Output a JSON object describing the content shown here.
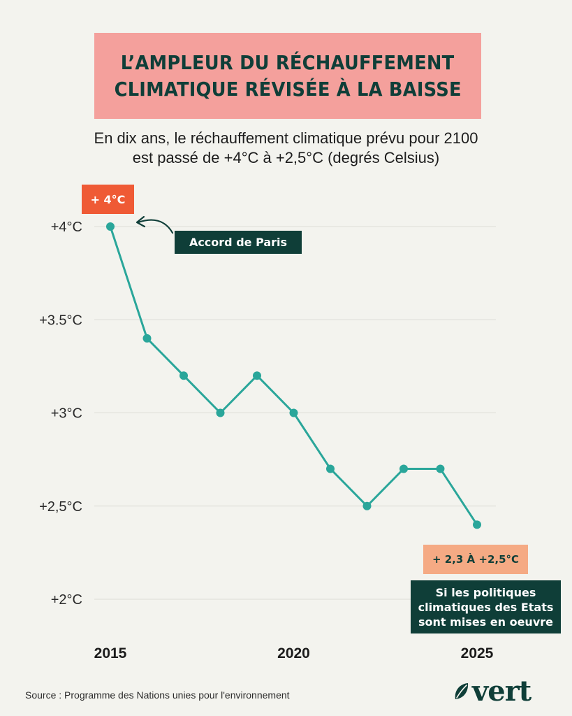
{
  "header": {
    "title_line1": "L’AMPLEUR DU RÉCHAUFFEMENT",
    "title_line2": "CLIMATIQUE RÉVISÉE À LA BAISSE",
    "subtitle_line1": "En dix ans, le réchauffement climatique prévu pour 2100",
    "subtitle_line2": "est passé de +4°C à +2,5°C (degrés Celsius)"
  },
  "annotations": {
    "start_label": "+ 4°C",
    "paris_label": "Accord de Paris",
    "end_label": "+ 2,3 À +2,5°C",
    "policy_line1": "Si les politiques",
    "policy_line2": "climatiques des Etats",
    "policy_line3": "sont mises en oeuvre"
  },
  "footer": {
    "source": "Source : Programme des Nations unies pour l'environnement",
    "logo_text": "vert"
  },
  "colors": {
    "line": "#2aa69a",
    "title_bg": "#f4a09c",
    "dark_green": "#0f3e38",
    "orange": "#ef5a35",
    "peach": "#f5aa84",
    "grid": "#dcdcd6",
    "background": "#f3f3ee"
  },
  "chart_data": {
    "type": "line",
    "title": "L’AMPLEUR DU RÉCHAUFFEMENT CLIMATIQUE RÉVISÉE À LA BAISSE",
    "xlabel": "",
    "ylabel": "",
    "x": [
      2015,
      2016,
      2017,
      2018,
      2019,
      2020,
      2021,
      2022,
      2023,
      2024,
      2025
    ],
    "values": [
      4.0,
      3.4,
      3.2,
      3.0,
      3.2,
      3.0,
      2.7,
      2.5,
      2.7,
      2.7,
      2.4
    ],
    "ylim": [
      2.0,
      4.0
    ],
    "yticks": [
      {
        "value": 4.0,
        "label": "+4°C"
      },
      {
        "value": 3.5,
        "label": "+3.5°C"
      },
      {
        "value": 3.0,
        "label": "+3°C"
      },
      {
        "value": 2.5,
        "label": "+2,5°C"
      },
      {
        "value": 2.0,
        "label": "+2°C"
      }
    ],
    "xticks": [
      {
        "value": 2015,
        "label": "2015"
      },
      {
        "value": 2020,
        "label": "2020"
      },
      {
        "value": 2025,
        "label": "2025"
      }
    ],
    "grid": true
  }
}
